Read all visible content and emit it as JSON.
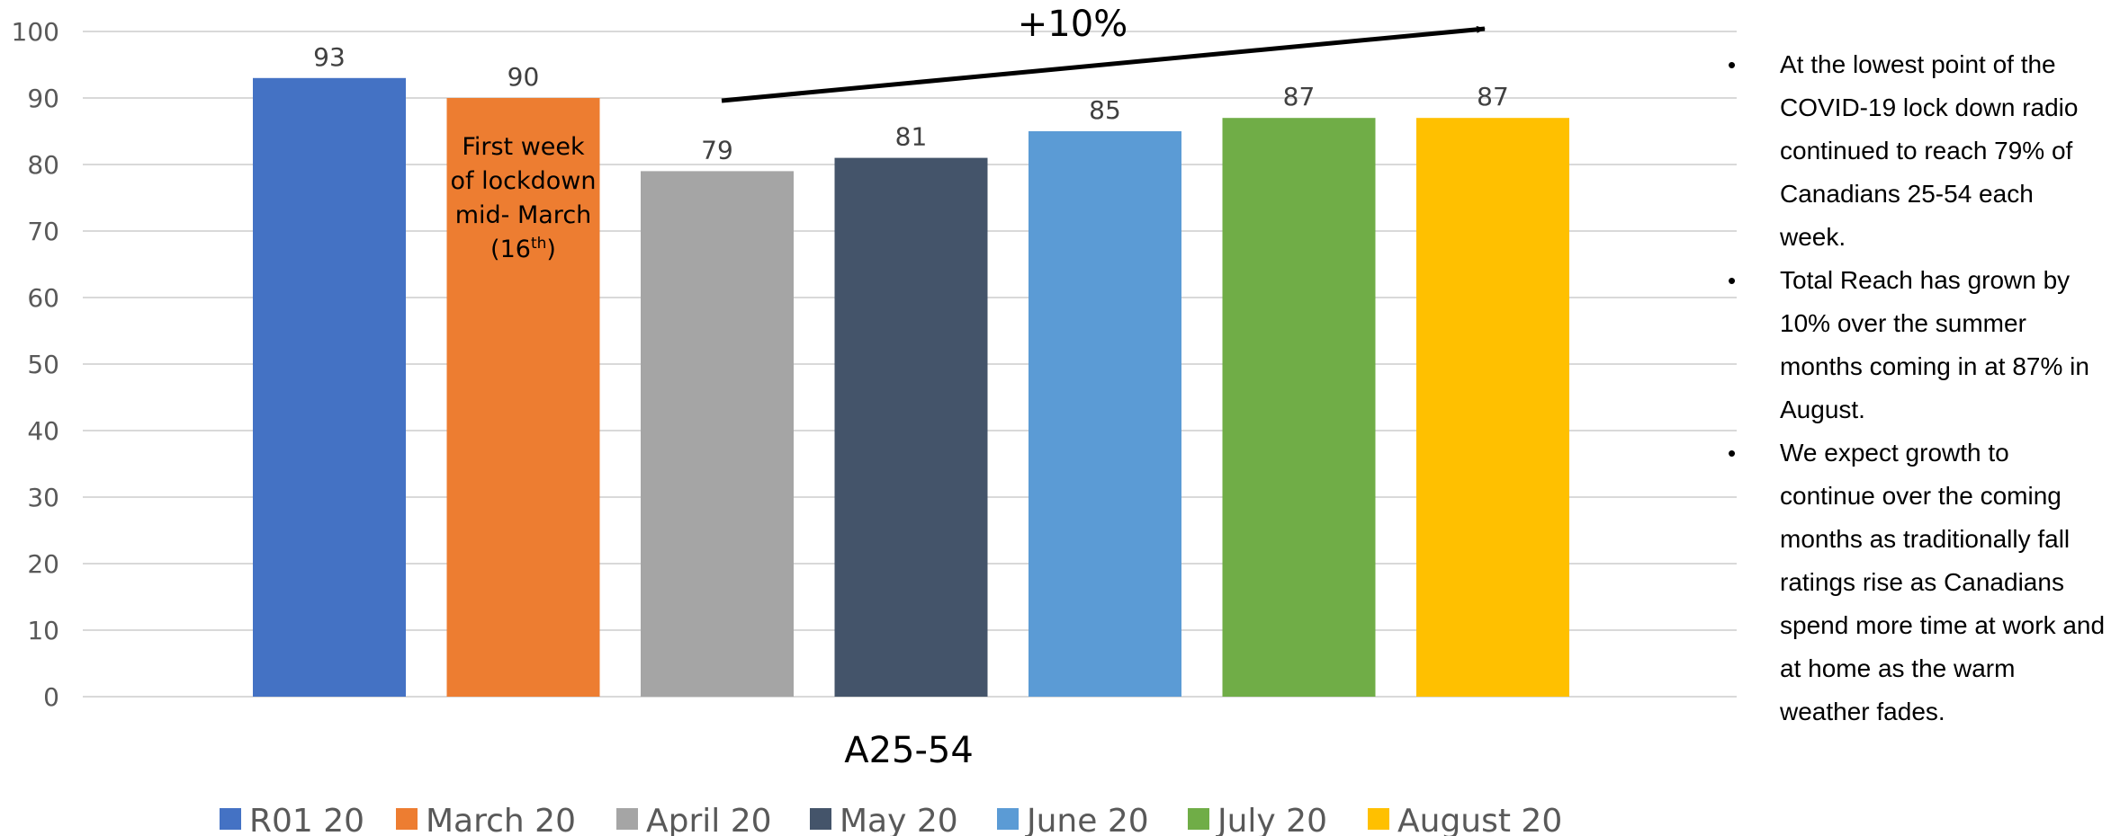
{
  "chart_data": {
    "type": "bar",
    "category": "A25-54",
    "ylim": [
      0,
      100
    ],
    "yticks": [
      0,
      10,
      20,
      30,
      40,
      50,
      60,
      70,
      80,
      90,
      100
    ],
    "grid": true,
    "legend_position": "bottom",
    "series": [
      {
        "name": "R01 20",
        "value": 93,
        "color": "#4472C4"
      },
      {
        "name": "March 20",
        "value": 90,
        "color": "#ED7D31"
      },
      {
        "name": "April 20",
        "value": 79,
        "color": "#A5A5A5"
      },
      {
        "name": "May 20",
        "value": 81,
        "color": "#44546A"
      },
      {
        "name": "June 20",
        "value": 85,
        "color": "#5B9BD5"
      },
      {
        "name": "July 20",
        "value": 87,
        "color": "#70AD47"
      },
      {
        "name": "August 20",
        "value": 87,
        "color": "#FFC000"
      }
    ],
    "annotations": {
      "march_note": [
        "First week",
        "of lockdown",
        "mid- March",
        "(16",
        "th",
        ")"
      ],
      "growth_label": "+10%"
    }
  },
  "bullets": [
    "At the lowest point of the COVID-19 lock down radio continued to reach 79% of Canadians 25-54 each week.",
    "Total Reach has grown by 10% over the summer months coming in at 87% in August.",
    "We expect growth to continue over the coming months as traditionally fall ratings rise as Canadians spend more time at work and at home as the warm weather fades."
  ],
  "bullet_glyph": "•"
}
